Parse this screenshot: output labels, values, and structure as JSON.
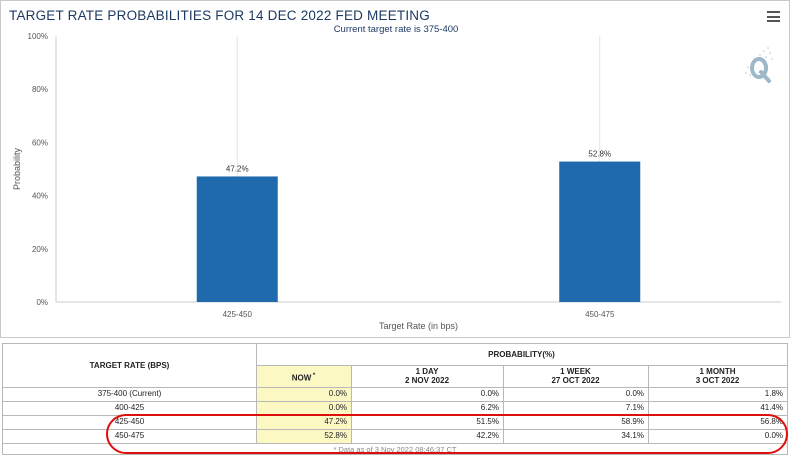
{
  "chart": {
    "title": "TARGET RATE PROBABILITIES FOR 14 DEC 2022 FED MEETING",
    "subtitle": "Current target rate is 375-400"
  },
  "chart_data": {
    "type": "bar",
    "categories": [
      "425-450",
      "450-475"
    ],
    "values": [
      47.2,
      52.8
    ],
    "value_labels": [
      "47.2%",
      "52.8%"
    ],
    "xlabel": "Target Rate (in bps)",
    "ylabel": "Probability",
    "ylim": [
      0,
      100
    ],
    "y_ticks": [
      "0%",
      "20%",
      "40%",
      "60%",
      "80%",
      "100%"
    ],
    "grid": "vertical",
    "bar_color": "#1f69ad"
  },
  "table": {
    "col_rate": "TARGET RATE (BPS)",
    "col_prob": "PROBABILITY(%)",
    "col_now": "NOW",
    "col_now_mark": "*",
    "col_1day": "1 DAY",
    "col_1day_date": "2 NOV 2022",
    "col_1week": "1 WEEK",
    "col_1week_date": "27 OCT 2022",
    "col_1month": "1 MONTH",
    "col_1month_date": "3 OCT 2022",
    "rows": [
      {
        "rate": "375-400 (Current)",
        "now": "0.0%",
        "day": "0.0%",
        "week": "0.0%",
        "month": "1.8%"
      },
      {
        "rate": "400-425",
        "now": "0.0%",
        "day": "6.2%",
        "week": "7.1%",
        "month": "41.4%"
      },
      {
        "rate": "425-450",
        "now": "47.2%",
        "day": "51.5%",
        "week": "58.9%",
        "month": "56.8%"
      },
      {
        "rate": "450-475",
        "now": "52.8%",
        "day": "42.2%",
        "week": "34.1%",
        "month": "0.0%"
      }
    ],
    "footnote": "* Data as of 3 Nov 2022 08:46:37 CT"
  },
  "colors": {
    "highlight": "#fbf8c4",
    "annotation_circle": "#e00d0d"
  },
  "icons": {
    "menu": "hamburger-menu-icon",
    "watermark": "quikstrike-logo"
  }
}
